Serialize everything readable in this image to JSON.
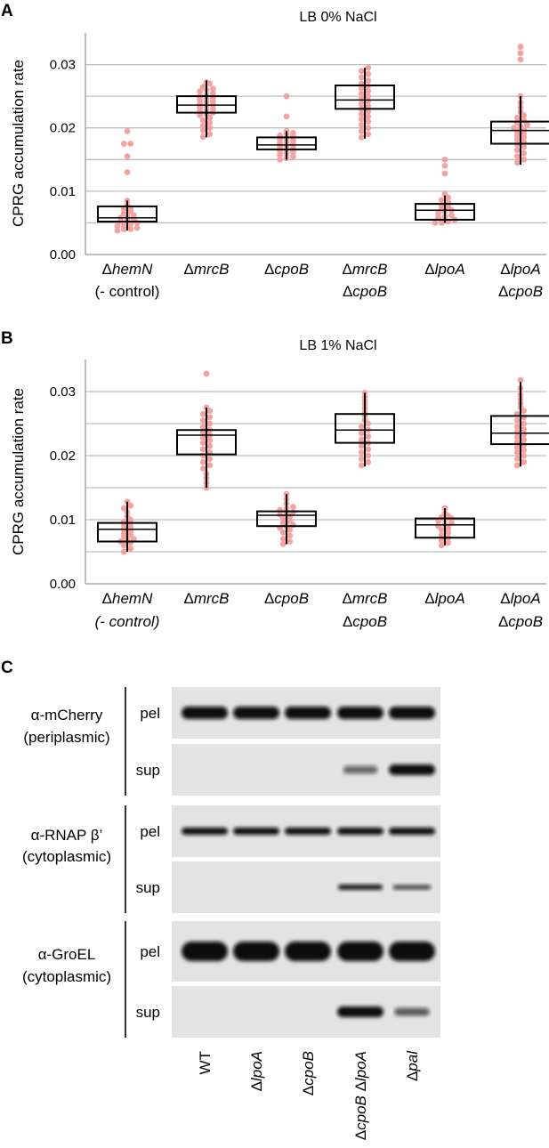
{
  "chart_data": [
    {
      "type": "scatter",
      "panel_label": "A",
      "title": "LB 0% NaCl",
      "ylabel": "CPRG accumulation rate",
      "ylim": [
        0,
        0.035
      ],
      "yticks": [
        "0.00",
        "0.01",
        "0.02",
        "0.03"
      ],
      "grid": true,
      "dot_color": "#f4a3a3",
      "categories": [
        {
          "prefix": "Δ",
          "name": "hemN",
          "line2": "(- control)",
          "line2_italic": false
        },
        {
          "prefix": "Δ",
          "name": "mrcB",
          "line2": "",
          "line2_italic": false
        },
        {
          "prefix": "Δ",
          "name": "cpoB",
          "line2": "",
          "line2_italic": false
        },
        {
          "prefix": "Δ",
          "name": "mrcB",
          "line2": "cpoB",
          "line2_italic": true
        },
        {
          "prefix": "Δ",
          "name": "lpoA",
          "line2": "",
          "line2_italic": false
        },
        {
          "prefix": "Δ",
          "name": "lpoA",
          "line2": "cpoB",
          "line2_italic": true
        }
      ],
      "series": [
        {
          "box": {
            "q1": 0.0052,
            "median": 0.0058,
            "q3": 0.0076,
            "whisker_low": 0.0038,
            "whisker_high": 0.0085
          },
          "values": [
            0.0195,
            0.0175,
            0.0175,
            0.0155,
            0.013,
            0.0085,
            0.0078,
            0.0072,
            0.0072,
            0.0068,
            0.0065,
            0.0062,
            0.006,
            0.0058,
            0.0056,
            0.0055,
            0.0052,
            0.005,
            0.0048,
            0.0045,
            0.0045,
            0.0042,
            0.004,
            0.004,
            0.0038
          ]
        },
        {
          "box": {
            "q1": 0.0224,
            "median": 0.0236,
            "q3": 0.025,
            "whisker_low": 0.0185,
            "whisker_high": 0.0275
          },
          "values": [
            0.0272,
            0.027,
            0.0265,
            0.0262,
            0.026,
            0.0258,
            0.0255,
            0.0252,
            0.025,
            0.0248,
            0.0246,
            0.0244,
            0.0242,
            0.024,
            0.0238,
            0.0236,
            0.0234,
            0.0232,
            0.023,
            0.0228,
            0.0226,
            0.0224,
            0.0222,
            0.022,
            0.0216,
            0.0212,
            0.0208,
            0.0204,
            0.02,
            0.0196,
            0.019,
            0.0186
          ]
        },
        {
          "box": {
            "q1": 0.0166,
            "median": 0.0173,
            "q3": 0.0185,
            "whisker_low": 0.015,
            "whisker_high": 0.0195
          },
          "values": [
            0.025,
            0.0218,
            0.0195,
            0.0192,
            0.019,
            0.0188,
            0.0186,
            0.0184,
            0.0182,
            0.018,
            0.0178,
            0.0176,
            0.0174,
            0.0172,
            0.017,
            0.0168,
            0.0166,
            0.0164,
            0.0162,
            0.016,
            0.0158,
            0.0155,
            0.0152,
            0.015
          ]
        },
        {
          "box": {
            "q1": 0.023,
            "median": 0.0244,
            "q3": 0.0267,
            "whisker_low": 0.0183,
            "whisker_high": 0.0295
          },
          "values": [
            0.0295,
            0.029,
            0.0285,
            0.028,
            0.0275,
            0.027,
            0.0266,
            0.0262,
            0.0258,
            0.0254,
            0.025,
            0.0246,
            0.0242,
            0.0238,
            0.0234,
            0.023,
            0.0226,
            0.0222,
            0.0218,
            0.0214,
            0.021,
            0.0205,
            0.02,
            0.0195,
            0.019,
            0.0185
          ]
        },
        {
          "box": {
            "q1": 0.0055,
            "median": 0.007,
            "q3": 0.008,
            "whisker_low": 0.005,
            "whisker_high": 0.0093
          },
          "values": [
            0.015,
            0.014,
            0.0128,
            0.0095,
            0.009,
            0.0086,
            0.0082,
            0.0078,
            0.0075,
            0.0072,
            0.007,
            0.0068,
            0.0065,
            0.0062,
            0.006,
            0.0058,
            0.0055,
            0.0052,
            0.005,
            0.005
          ]
        },
        {
          "box": {
            "q1": 0.0175,
            "median": 0.0196,
            "q3": 0.021,
            "whisker_low": 0.0142,
            "whisker_high": 0.025
          },
          "values": [
            0.0328,
            0.0318,
            0.0308,
            0.025,
            0.024,
            0.0232,
            0.0225,
            0.022,
            0.0216,
            0.0212,
            0.0208,
            0.0205,
            0.0202,
            0.02,
            0.0197,
            0.0194,
            0.0191,
            0.0188,
            0.0185,
            0.0182,
            0.0178,
            0.0174,
            0.017,
            0.0165,
            0.016,
            0.0155,
            0.015,
            0.0145
          ]
        }
      ]
    },
    {
      "type": "scatter",
      "panel_label": "B",
      "title": "LB 1% NaCl",
      "ylabel": "CPRG accumulation rate",
      "ylim": [
        0,
        0.035
      ],
      "yticks": [
        "0.00",
        "0.01",
        "0.02",
        "0.03"
      ],
      "grid": true,
      "dot_color": "#f4a3a3",
      "categories": [
        {
          "prefix": "Δ",
          "name": "hemN",
          "line2": "(- control)",
          "line2_italic": true
        },
        {
          "prefix": "Δ",
          "name": "mrcB",
          "line2": "",
          "line2_italic": false
        },
        {
          "prefix": "Δ",
          "name": "cpoB",
          "line2": "",
          "line2_italic": false
        },
        {
          "prefix": "Δ",
          "name": "mrcB",
          "line2": "cpoB",
          "line2_italic": true
        },
        {
          "prefix": "Δ",
          "name": "lpoA",
          "line2": "",
          "line2_italic": false
        },
        {
          "prefix": "Δ",
          "name": "lpoA",
          "line2": "cpoB",
          "line2_italic": true
        }
      ],
      "series": [
        {
          "box": {
            "q1": 0.0066,
            "median": 0.0085,
            "q3": 0.0095,
            "whisker_low": 0.005,
            "whisker_high": 0.0128
          },
          "values": [
            0.0128,
            0.0122,
            0.0118,
            0.0112,
            0.0105,
            0.01,
            0.0097,
            0.0094,
            0.0091,
            0.0088,
            0.0085,
            0.0082,
            0.0079,
            0.0076,
            0.0073,
            0.007,
            0.0068,
            0.0066,
            0.0064,
            0.006,
            0.0055,
            0.005
          ]
        },
        {
          "box": {
            "q1": 0.0202,
            "median": 0.0232,
            "q3": 0.024,
            "whisker_low": 0.015,
            "whisker_high": 0.0275
          },
          "values": [
            0.0328,
            0.0275,
            0.027,
            0.0265,
            0.026,
            0.0255,
            0.025,
            0.0245,
            0.024,
            0.0236,
            0.0232,
            0.0228,
            0.0224,
            0.022,
            0.0215,
            0.021,
            0.0205,
            0.02,
            0.0195,
            0.019,
            0.0185,
            0.018,
            0.0172,
            0.0165,
            0.0158,
            0.015
          ]
        },
        {
          "box": {
            "q1": 0.009,
            "median": 0.0107,
            "q3": 0.0113,
            "whisker_low": 0.0062,
            "whisker_high": 0.014
          },
          "values": [
            0.014,
            0.0132,
            0.0125,
            0.012,
            0.0117,
            0.0115,
            0.0112,
            0.011,
            0.0108,
            0.0105,
            0.0102,
            0.0098,
            0.0095,
            0.0092,
            0.009,
            0.0087,
            0.0084,
            0.008,
            0.0075,
            0.007,
            0.0066,
            0.0062
          ]
        },
        {
          "box": {
            "q1": 0.022,
            "median": 0.024,
            "q3": 0.0265,
            "whisker_low": 0.0183,
            "whisker_high": 0.0298
          },
          "values": [
            0.0298,
            0.0292,
            0.0286,
            0.028,
            0.0274,
            0.0268,
            0.0262,
            0.0256,
            0.025,
            0.0245,
            0.024,
            0.0235,
            0.023,
            0.0225,
            0.022,
            0.0215,
            0.021,
            0.0205,
            0.02,
            0.0195,
            0.019,
            0.0185
          ]
        },
        {
          "box": {
            "q1": 0.0072,
            "median": 0.0092,
            "q3": 0.0102,
            "whisker_low": 0.006,
            "whisker_high": 0.0118
          },
          "values": [
            0.0118,
            0.011,
            0.0106,
            0.0104,
            0.0102,
            0.01,
            0.0098,
            0.0095,
            0.0092,
            0.009,
            0.0087,
            0.0084,
            0.008,
            0.0076,
            0.0072,
            0.0068,
            0.0064,
            0.006
          ]
        },
        {
          "box": {
            "q1": 0.0218,
            "median": 0.0235,
            "q3": 0.0262,
            "whisker_low": 0.0183,
            "whisker_high": 0.0315
          },
          "values": [
            0.0318,
            0.0305,
            0.0295,
            0.0288,
            0.0282,
            0.0276,
            0.027,
            0.0265,
            0.026,
            0.0255,
            0.025,
            0.0245,
            0.0241,
            0.0237,
            0.0233,
            0.0229,
            0.0225,
            0.0221,
            0.0217,
            0.0213,
            0.0209,
            0.0205,
            0.02,
            0.0195,
            0.019,
            0.0185
          ]
        }
      ]
    }
  ],
  "blot": {
    "panel_label": "C",
    "lanes": [
      {
        "prefix": "",
        "name": "WT",
        "italic": false
      },
      {
        "prefix": "Δ",
        "name": "lpoA",
        "italic": true
      },
      {
        "prefix": "Δ",
        "name": "cpoB",
        "italic": true
      },
      {
        "prefix": "Δ",
        "name": "cpoB ΔlpoA",
        "italic": true
      },
      {
        "prefix": "Δ",
        "name": "pal",
        "italic": true
      }
    ],
    "groups": [
      {
        "antibody": "α-mCherry",
        "location": "(periplasmic)",
        "rows": [
          {
            "fraction": "pel",
            "band": [
              1.0,
              1.0,
              1.0,
              1.0,
              1.0
            ],
            "thickness": 14
          },
          {
            "fraction": "sup",
            "band": [
              0,
              0,
              0,
              0.35,
              1.0
            ],
            "thickness": 12
          }
        ]
      },
      {
        "antibody": "α-RNAP β’",
        "location": "(cytoplasmic)",
        "rows": [
          {
            "fraction": "pel",
            "band": [
              1.0,
              1.0,
              1.0,
              1.0,
              1.0
            ],
            "thickness": 8
          },
          {
            "fraction": "sup",
            "band": [
              0,
              0,
              0,
              0.9,
              0.55
            ],
            "thickness": 6
          }
        ]
      },
      {
        "antibody": "α-GroEL",
        "location": "(cytoplasmic)",
        "rows": [
          {
            "fraction": "pel",
            "band": [
              1.0,
              1.0,
              1.0,
              1.0,
              1.0
            ],
            "thickness": 22
          },
          {
            "fraction": "sup",
            "band": [
              0,
              0,
              0,
              1.0,
              0.4
            ],
            "thickness": 12
          }
        ]
      }
    ]
  }
}
